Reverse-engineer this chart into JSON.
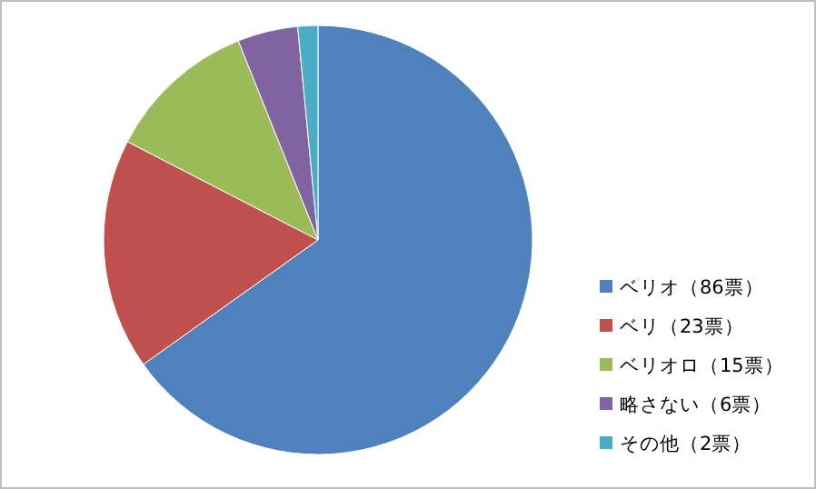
{
  "chart_data": {
    "type": "pie",
    "categories": [
      "ベリオ（86票）",
      "ベリ（23票）",
      "ベリオロ（15票）",
      "略さない（6票）",
      "その他（2票）"
    ],
    "values": [
      86,
      23,
      15,
      6,
      2
    ],
    "colors": [
      "#4f81bd",
      "#c0504d",
      "#9bbb59",
      "#8064a2",
      "#4bacc6"
    ],
    "legend": "right"
  }
}
